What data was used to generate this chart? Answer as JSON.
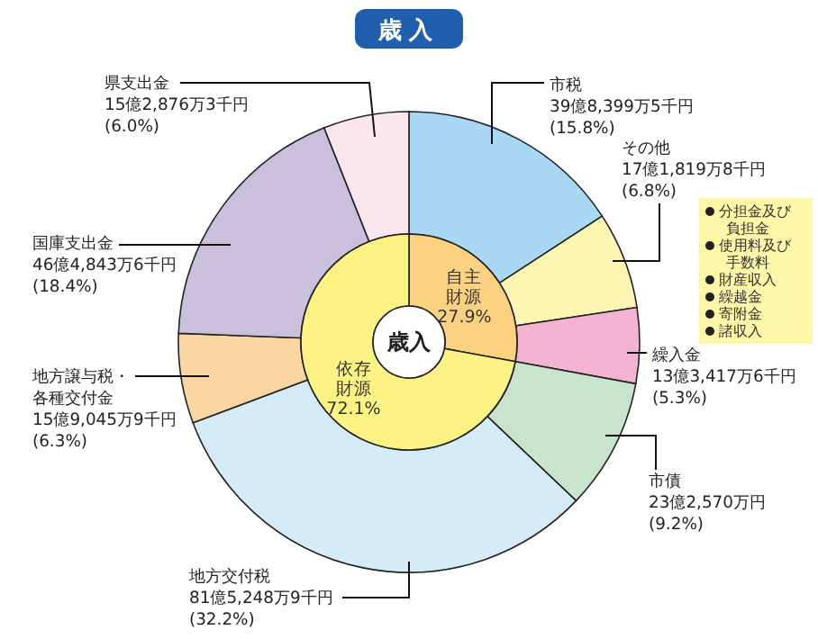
{
  "chart_data": [
    {
      "type": "donut",
      "title": "歳入",
      "categories": [
        "市税",
        "その他",
        "繰入金",
        "市債",
        "地方交付税",
        "地方譲与税・各種交付金",
        "国庫支出金",
        "県支出金"
      ],
      "values": [
        15.8,
        6.8,
        5.3,
        9.2,
        32.2,
        6.3,
        18.4,
        6.0
      ],
      "colors": [
        "#a8d8f4",
        "#fdf6b2",
        "#f2b4d0",
        "#c9e4cd",
        "#d5ebf8",
        "#fad7a2",
        "#c9c1dc",
        "#fbe5ee"
      ],
      "value_labels": [
        "39億8,399万5千円 (15.8%)",
        "17億1,819万8千円 (6.8%)",
        "13億3,417万6千円 (5.3%)",
        "23億2,570万円 (9.2%)",
        "81億5,248万9千円 (32.2%)",
        "15億9,045万9千円 (6.3%)",
        "46億4,843万6千円 (18.4%)",
        "15億2,876万3千円 (6.0%)"
      ],
      "annotations": [
        "分担金及び負担金",
        "使用料及び手数料",
        "財産収入",
        "繰越金",
        "寄附金",
        "諸収入"
      ]
    },
    {
      "type": "donut",
      "title": "歳入",
      "categories": [
        "自主財源",
        "依存財源"
      ],
      "values": [
        27.9,
        72.1
      ],
      "colors": [
        "#fcd281",
        "#fdf384"
      ],
      "value_labels": [
        "27.9%",
        "72.1%"
      ]
    }
  ]
}
